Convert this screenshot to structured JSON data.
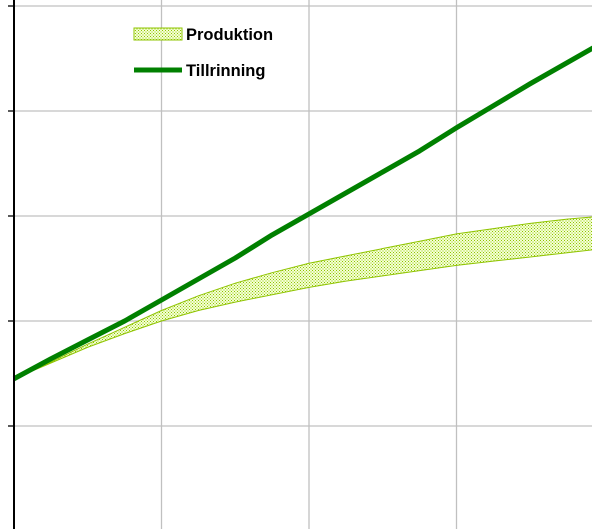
{
  "chart_data": {
    "type": "area",
    "grid": true,
    "legend_placement": "top-left",
    "xlim": [
      0,
      4
    ],
    "ylim": [
      0,
      5
    ],
    "x_gridlines": [
      1,
      2,
      3
    ],
    "y_gridlines": [
      1,
      2,
      3,
      4
    ],
    "series": [
      {
        "name": "Produktion",
        "type": "band",
        "color": "#8fc400",
        "x": [
          0,
          0.25,
          0.5,
          0.75,
          1,
          1.25,
          1.5,
          1.75,
          2,
          2.25,
          2.5,
          2.75,
          3,
          3.25,
          3.5,
          3.75,
          4
        ],
        "lower": [
          1.45,
          1.6,
          1.75,
          1.88,
          2.0,
          2.1,
          2.18,
          2.25,
          2.32,
          2.38,
          2.43,
          2.48,
          2.53,
          2.57,
          2.61,
          2.65,
          2.69
        ],
        "upper": [
          1.45,
          1.61,
          1.78,
          1.94,
          2.1,
          2.24,
          2.36,
          2.46,
          2.55,
          2.62,
          2.69,
          2.76,
          2.83,
          2.88,
          2.93,
          2.97,
          3.0
        ]
      },
      {
        "name": "Tillrinning",
        "type": "line",
        "color": "#008000",
        "x": [
          0,
          0.25,
          0.5,
          0.75,
          1,
          1.25,
          1.5,
          1.75,
          2,
          2.25,
          2.5,
          2.75,
          3,
          3.25,
          3.5,
          3.75,
          4
        ],
        "values": [
          1.45,
          1.64,
          1.82,
          2.0,
          2.2,
          2.4,
          2.6,
          2.82,
          3.02,
          3.22,
          3.42,
          3.62,
          3.84,
          4.05,
          4.26,
          4.46,
          4.66
        ]
      }
    ]
  }
}
